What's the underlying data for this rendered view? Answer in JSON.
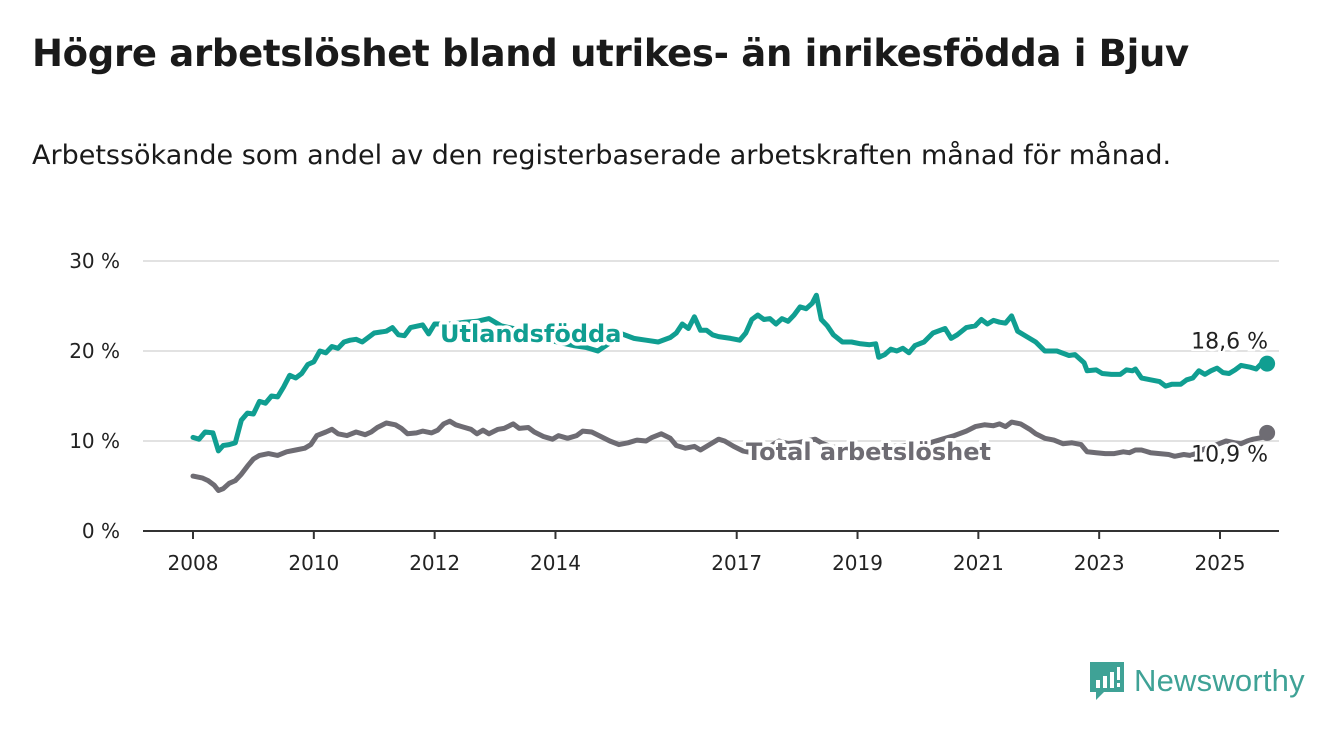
{
  "title": "Högre arbetslöshet bland utrikes- än inrikesfödda i Bjuv",
  "subtitle": "Arbetssökande som andel av den registerbaserade arbetskraften månad för månad.",
  "brand": {
    "name": "Newsworthy"
  },
  "chart_data": {
    "type": "line",
    "xlabel": "",
    "ylabel": "",
    "ylim": [
      0,
      30
    ],
    "xlim": [
      2007.8,
      2025.9
    ],
    "grid": true,
    "y_ticks": [
      {
        "value": 0,
        "label": "0 %"
      },
      {
        "value": 10,
        "label": "10 %"
      },
      {
        "value": 20,
        "label": "20 %"
      },
      {
        "value": 30,
        "label": "30 %"
      }
    ],
    "x_ticks": [
      {
        "value": 2008,
        "label": "2008"
      },
      {
        "value": 2010,
        "label": "2010"
      },
      {
        "value": 2012,
        "label": "2012"
      },
      {
        "value": 2014,
        "label": "2014"
      },
      {
        "value": 2017,
        "label": "2017"
      },
      {
        "value": 2019,
        "label": "2019"
      },
      {
        "value": 2021,
        "label": "2021"
      },
      {
        "value": 2023,
        "label": "2023"
      },
      {
        "value": 2025,
        "label": "2025"
      }
    ],
    "series": [
      {
        "name": "Utlandsfödda",
        "color": "#109e91",
        "end_label": "18,6 %",
        "points": [
          [
            2008.0,
            10.4
          ],
          [
            2008.1,
            10.2
          ],
          [
            2008.2,
            11.0
          ],
          [
            2008.33,
            10.9
          ],
          [
            2008.42,
            8.9
          ],
          [
            2008.5,
            9.5
          ],
          [
            2008.6,
            9.6
          ],
          [
            2008.7,
            9.8
          ],
          [
            2008.8,
            12.3
          ],
          [
            2008.9,
            13.1
          ],
          [
            2009.0,
            13.0
          ],
          [
            2009.1,
            14.4
          ],
          [
            2009.2,
            14.2
          ],
          [
            2009.3,
            15.0
          ],
          [
            2009.4,
            14.9
          ],
          [
            2009.5,
            16.0
          ],
          [
            2009.6,
            17.3
          ],
          [
            2009.7,
            17.0
          ],
          [
            2009.8,
            17.5
          ],
          [
            2009.9,
            18.5
          ],
          [
            2010.0,
            18.8
          ],
          [
            2010.1,
            20.0
          ],
          [
            2010.2,
            19.8
          ],
          [
            2010.3,
            20.5
          ],
          [
            2010.4,
            20.3
          ],
          [
            2010.5,
            21.0
          ],
          [
            2010.6,
            21.2
          ],
          [
            2010.7,
            21.3
          ],
          [
            2010.8,
            21.0
          ],
          [
            2010.9,
            21.5
          ],
          [
            2011.0,
            22.0
          ],
          [
            2011.2,
            22.2
          ],
          [
            2011.3,
            22.6
          ],
          [
            2011.4,
            21.8
          ],
          [
            2011.5,
            21.7
          ],
          [
            2011.6,
            22.6
          ],
          [
            2011.8,
            22.9
          ],
          [
            2011.9,
            21.9
          ],
          [
            2012.0,
            23.0
          ],
          [
            2012.1,
            23.0
          ],
          [
            2012.3,
            23.0
          ],
          [
            2012.5,
            23.2
          ],
          [
            2012.7,
            23.3
          ],
          [
            2012.9,
            23.6
          ],
          [
            2013.1,
            22.8
          ],
          [
            2013.3,
            22.5
          ],
          [
            2013.5,
            22.1
          ],
          [
            2013.7,
            21.6
          ],
          [
            2013.9,
            21.2
          ],
          [
            2014.1,
            20.9
          ],
          [
            2014.3,
            20.6
          ],
          [
            2014.5,
            20.4
          ],
          [
            2014.7,
            20.0
          ],
          [
            2014.9,
            20.9
          ],
          [
            2015.1,
            21.9
          ],
          [
            2015.3,
            21.4
          ],
          [
            2015.5,
            21.2
          ],
          [
            2015.7,
            21.0
          ],
          [
            2015.9,
            21.5
          ],
          [
            2016.0,
            22.0
          ],
          [
            2016.1,
            23.0
          ],
          [
            2016.2,
            22.5
          ],
          [
            2016.3,
            23.8
          ],
          [
            2016.4,
            22.3
          ],
          [
            2016.5,
            22.3
          ],
          [
            2016.6,
            21.8
          ],
          [
            2016.7,
            21.6
          ],
          [
            2016.9,
            21.4
          ],
          [
            2017.05,
            21.2
          ],
          [
            2017.15,
            22.0
          ],
          [
            2017.25,
            23.5
          ],
          [
            2017.35,
            24.0
          ],
          [
            2017.45,
            23.5
          ],
          [
            2017.55,
            23.6
          ],
          [
            2017.65,
            23.0
          ],
          [
            2017.75,
            23.6
          ],
          [
            2017.85,
            23.3
          ],
          [
            2017.95,
            24.0
          ],
          [
            2018.05,
            24.9
          ],
          [
            2018.15,
            24.7
          ],
          [
            2018.25,
            25.3
          ],
          [
            2018.32,
            26.2
          ],
          [
            2018.4,
            23.5
          ],
          [
            2018.5,
            22.8
          ],
          [
            2018.6,
            21.8
          ],
          [
            2018.75,
            21.0
          ],
          [
            2018.9,
            21.0
          ],
          [
            2019.05,
            20.8
          ],
          [
            2019.2,
            20.7
          ],
          [
            2019.3,
            20.8
          ],
          [
            2019.35,
            19.3
          ],
          [
            2019.45,
            19.6
          ],
          [
            2019.55,
            20.2
          ],
          [
            2019.65,
            20.0
          ],
          [
            2019.75,
            20.3
          ],
          [
            2019.85,
            19.8
          ],
          [
            2019.95,
            20.6
          ],
          [
            2020.1,
            21.0
          ],
          [
            2020.25,
            22.0
          ],
          [
            2020.45,
            22.5
          ],
          [
            2020.55,
            21.4
          ],
          [
            2020.65,
            21.8
          ],
          [
            2020.8,
            22.6
          ],
          [
            2020.95,
            22.8
          ],
          [
            2021.05,
            23.5
          ],
          [
            2021.15,
            23.0
          ],
          [
            2021.25,
            23.4
          ],
          [
            2021.35,
            23.2
          ],
          [
            2021.45,
            23.1
          ],
          [
            2021.55,
            23.9
          ],
          [
            2021.65,
            22.2
          ],
          [
            2021.8,
            21.6
          ],
          [
            2021.95,
            21.0
          ],
          [
            2022.1,
            20.0
          ],
          [
            2022.3,
            20.0
          ],
          [
            2022.5,
            19.5
          ],
          [
            2022.6,
            19.6
          ],
          [
            2022.75,
            18.7
          ],
          [
            2022.8,
            17.8
          ],
          [
            2022.95,
            17.9
          ],
          [
            2023.05,
            17.5
          ],
          [
            2023.2,
            17.4
          ],
          [
            2023.35,
            17.4
          ],
          [
            2023.45,
            17.9
          ],
          [
            2023.55,
            17.8
          ],
          [
            2023.6,
            18.0
          ],
          [
            2023.7,
            17.0
          ],
          [
            2023.85,
            16.8
          ],
          [
            2024.0,
            16.6
          ],
          [
            2024.1,
            16.1
          ],
          [
            2024.2,
            16.3
          ],
          [
            2024.35,
            16.3
          ],
          [
            2024.45,
            16.8
          ],
          [
            2024.55,
            17.0
          ],
          [
            2024.65,
            17.8
          ],
          [
            2024.75,
            17.4
          ],
          [
            2024.85,
            17.8
          ],
          [
            2024.95,
            18.1
          ],
          [
            2025.05,
            17.6
          ],
          [
            2025.15,
            17.5
          ],
          [
            2025.25,
            17.9
          ],
          [
            2025.35,
            18.4
          ],
          [
            2025.5,
            18.2
          ],
          [
            2025.6,
            18.0
          ],
          [
            2025.7,
            18.7
          ],
          [
            2025.78,
            18.6
          ]
        ]
      },
      {
        "name": "Total arbetslöshet",
        "color": "#6e6c73",
        "end_label": "10,9 %",
        "points": [
          [
            2008.0,
            6.1
          ],
          [
            2008.15,
            5.9
          ],
          [
            2008.25,
            5.6
          ],
          [
            2008.35,
            5.1
          ],
          [
            2008.42,
            4.5
          ],
          [
            2008.5,
            4.7
          ],
          [
            2008.6,
            5.3
          ],
          [
            2008.7,
            5.6
          ],
          [
            2008.8,
            6.3
          ],
          [
            2008.9,
            7.2
          ],
          [
            2009.0,
            8.0
          ],
          [
            2009.1,
            8.4
          ],
          [
            2009.25,
            8.6
          ],
          [
            2009.4,
            8.4
          ],
          [
            2009.55,
            8.8
          ],
          [
            2009.7,
            9.0
          ],
          [
            2009.85,
            9.2
          ],
          [
            2009.95,
            9.6
          ],
          [
            2010.05,
            10.6
          ],
          [
            2010.2,
            11.0
          ],
          [
            2010.3,
            11.3
          ],
          [
            2010.4,
            10.8
          ],
          [
            2010.55,
            10.6
          ],
          [
            2010.7,
            11.0
          ],
          [
            2010.85,
            10.7
          ],
          [
            2010.95,
            11.0
          ],
          [
            2011.05,
            11.5
          ],
          [
            2011.2,
            12.0
          ],
          [
            2011.35,
            11.8
          ],
          [
            2011.45,
            11.4
          ],
          [
            2011.55,
            10.8
          ],
          [
            2011.7,
            10.9
          ],
          [
            2011.8,
            11.1
          ],
          [
            2011.95,
            10.9
          ],
          [
            2012.05,
            11.2
          ],
          [
            2012.15,
            11.9
          ],
          [
            2012.25,
            12.2
          ],
          [
            2012.35,
            11.8
          ],
          [
            2012.45,
            11.6
          ],
          [
            2012.6,
            11.3
          ],
          [
            2012.7,
            10.8
          ],
          [
            2012.8,
            11.2
          ],
          [
            2012.9,
            10.8
          ],
          [
            2013.05,
            11.3
          ],
          [
            2013.15,
            11.4
          ],
          [
            2013.3,
            11.9
          ],
          [
            2013.4,
            11.4
          ],
          [
            2013.55,
            11.5
          ],
          [
            2013.65,
            11.0
          ],
          [
            2013.8,
            10.5
          ],
          [
            2013.95,
            10.2
          ],
          [
            2014.05,
            10.6
          ],
          [
            2014.2,
            10.3
          ],
          [
            2014.35,
            10.6
          ],
          [
            2014.45,
            11.1
          ],
          [
            2014.6,
            11.0
          ],
          [
            2014.75,
            10.5
          ],
          [
            2014.9,
            10.0
          ],
          [
            2015.05,
            9.6
          ],
          [
            2015.2,
            9.8
          ],
          [
            2015.35,
            10.1
          ],
          [
            2015.5,
            10.0
          ],
          [
            2015.6,
            10.4
          ],
          [
            2015.75,
            10.8
          ],
          [
            2015.9,
            10.3
          ],
          [
            2016.0,
            9.5
          ],
          [
            2016.15,
            9.2
          ],
          [
            2016.3,
            9.4
          ],
          [
            2016.4,
            9.0
          ],
          [
            2016.55,
            9.6
          ],
          [
            2016.7,
            10.2
          ],
          [
            2016.8,
            10.0
          ],
          [
            2016.95,
            9.4
          ],
          [
            2017.1,
            8.9
          ],
          [
            2017.25,
            8.7
          ],
          [
            2017.45,
            8.8
          ],
          [
            2017.55,
            9.4
          ],
          [
            2017.7,
            10.0
          ],
          [
            2017.85,
            9.7
          ],
          [
            2018.0,
            9.8
          ],
          [
            2018.15,
            10.0
          ],
          [
            2018.3,
            10.2
          ],
          [
            2018.4,
            9.8
          ],
          [
            2018.55,
            9.4
          ],
          [
            2018.7,
            9.2
          ],
          [
            2018.85,
            9.1
          ],
          [
            2019.0,
            9.0
          ],
          [
            2019.2,
            9.1
          ],
          [
            2019.4,
            9.3
          ],
          [
            2019.6,
            9.4
          ],
          [
            2019.8,
            9.5
          ],
          [
            2020.0,
            9.7
          ],
          [
            2020.2,
            9.8
          ],
          [
            2020.4,
            10.2
          ],
          [
            2020.6,
            10.6
          ],
          [
            2020.8,
            11.1
          ],
          [
            2020.95,
            11.6
          ],
          [
            2021.1,
            11.8
          ],
          [
            2021.25,
            11.7
          ],
          [
            2021.35,
            11.9
          ],
          [
            2021.45,
            11.6
          ],
          [
            2021.55,
            12.1
          ],
          [
            2021.7,
            11.9
          ],
          [
            2021.85,
            11.3
          ],
          [
            2021.95,
            10.8
          ],
          [
            2022.1,
            10.3
          ],
          [
            2022.25,
            10.1
          ],
          [
            2022.4,
            9.7
          ],
          [
            2022.55,
            9.8
          ],
          [
            2022.7,
            9.6
          ],
          [
            2022.8,
            8.8
          ],
          [
            2022.95,
            8.7
          ],
          [
            2023.1,
            8.6
          ],
          [
            2023.25,
            8.6
          ],
          [
            2023.4,
            8.8
          ],
          [
            2023.5,
            8.7
          ],
          [
            2023.6,
            9.0
          ],
          [
            2023.7,
            9.0
          ],
          [
            2023.85,
            8.7
          ],
          [
            2024.0,
            8.6
          ],
          [
            2024.15,
            8.5
          ],
          [
            2024.25,
            8.3
          ],
          [
            2024.4,
            8.5
          ],
          [
            2024.5,
            8.4
          ],
          [
            2024.6,
            8.6
          ],
          [
            2024.7,
            9.0
          ],
          [
            2024.85,
            9.4
          ],
          [
            2024.95,
            9.6
          ],
          [
            2025.1,
            10.0
          ],
          [
            2025.25,
            9.8
          ],
          [
            2025.35,
            9.7
          ],
          [
            2025.45,
            10.0
          ],
          [
            2025.55,
            10.2
          ],
          [
            2025.7,
            10.4
          ],
          [
            2025.78,
            10.9
          ]
        ]
      }
    ]
  }
}
